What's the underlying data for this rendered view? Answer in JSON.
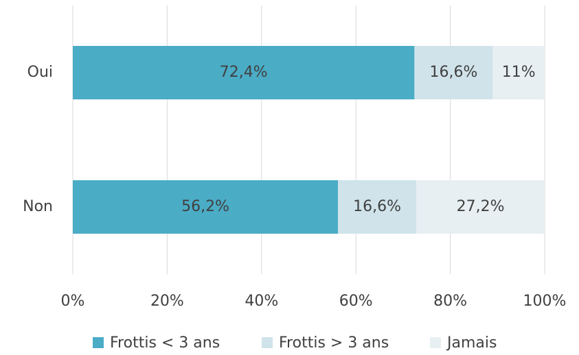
{
  "chart_data": {
    "type": "stacked_barh",
    "categories": [
      "Oui",
      "Non"
    ],
    "series": [
      {
        "name": "Frottis < 3 ans",
        "color": "#4bacc6",
        "values": [
          72.4,
          56.2
        ],
        "value_labels": [
          "72,4%",
          "56,2%"
        ]
      },
      {
        "name": "Frottis > 3 ans",
        "color": "#d0e3ea",
        "values": [
          16.6,
          16.6
        ],
        "value_labels": [
          "16,6%",
          "16,6%"
        ]
      },
      {
        "name": "Jamais",
        "color": "#e7eff2",
        "values": [
          11,
          27.2
        ],
        "value_labels": [
          "11%",
          "27,2%"
        ]
      }
    ],
    "xlim": [
      0,
      100
    ],
    "xticks": [
      {
        "value": 0,
        "label": "0%"
      },
      {
        "value": 20,
        "label": "20%"
      },
      {
        "value": 40,
        "label": "40%"
      },
      {
        "value": 60,
        "label": "60%"
      },
      {
        "value": 80,
        "label": "80%"
      },
      {
        "value": 100,
        "label": "100%"
      }
    ],
    "grid": true,
    "legend": "bottom"
  }
}
